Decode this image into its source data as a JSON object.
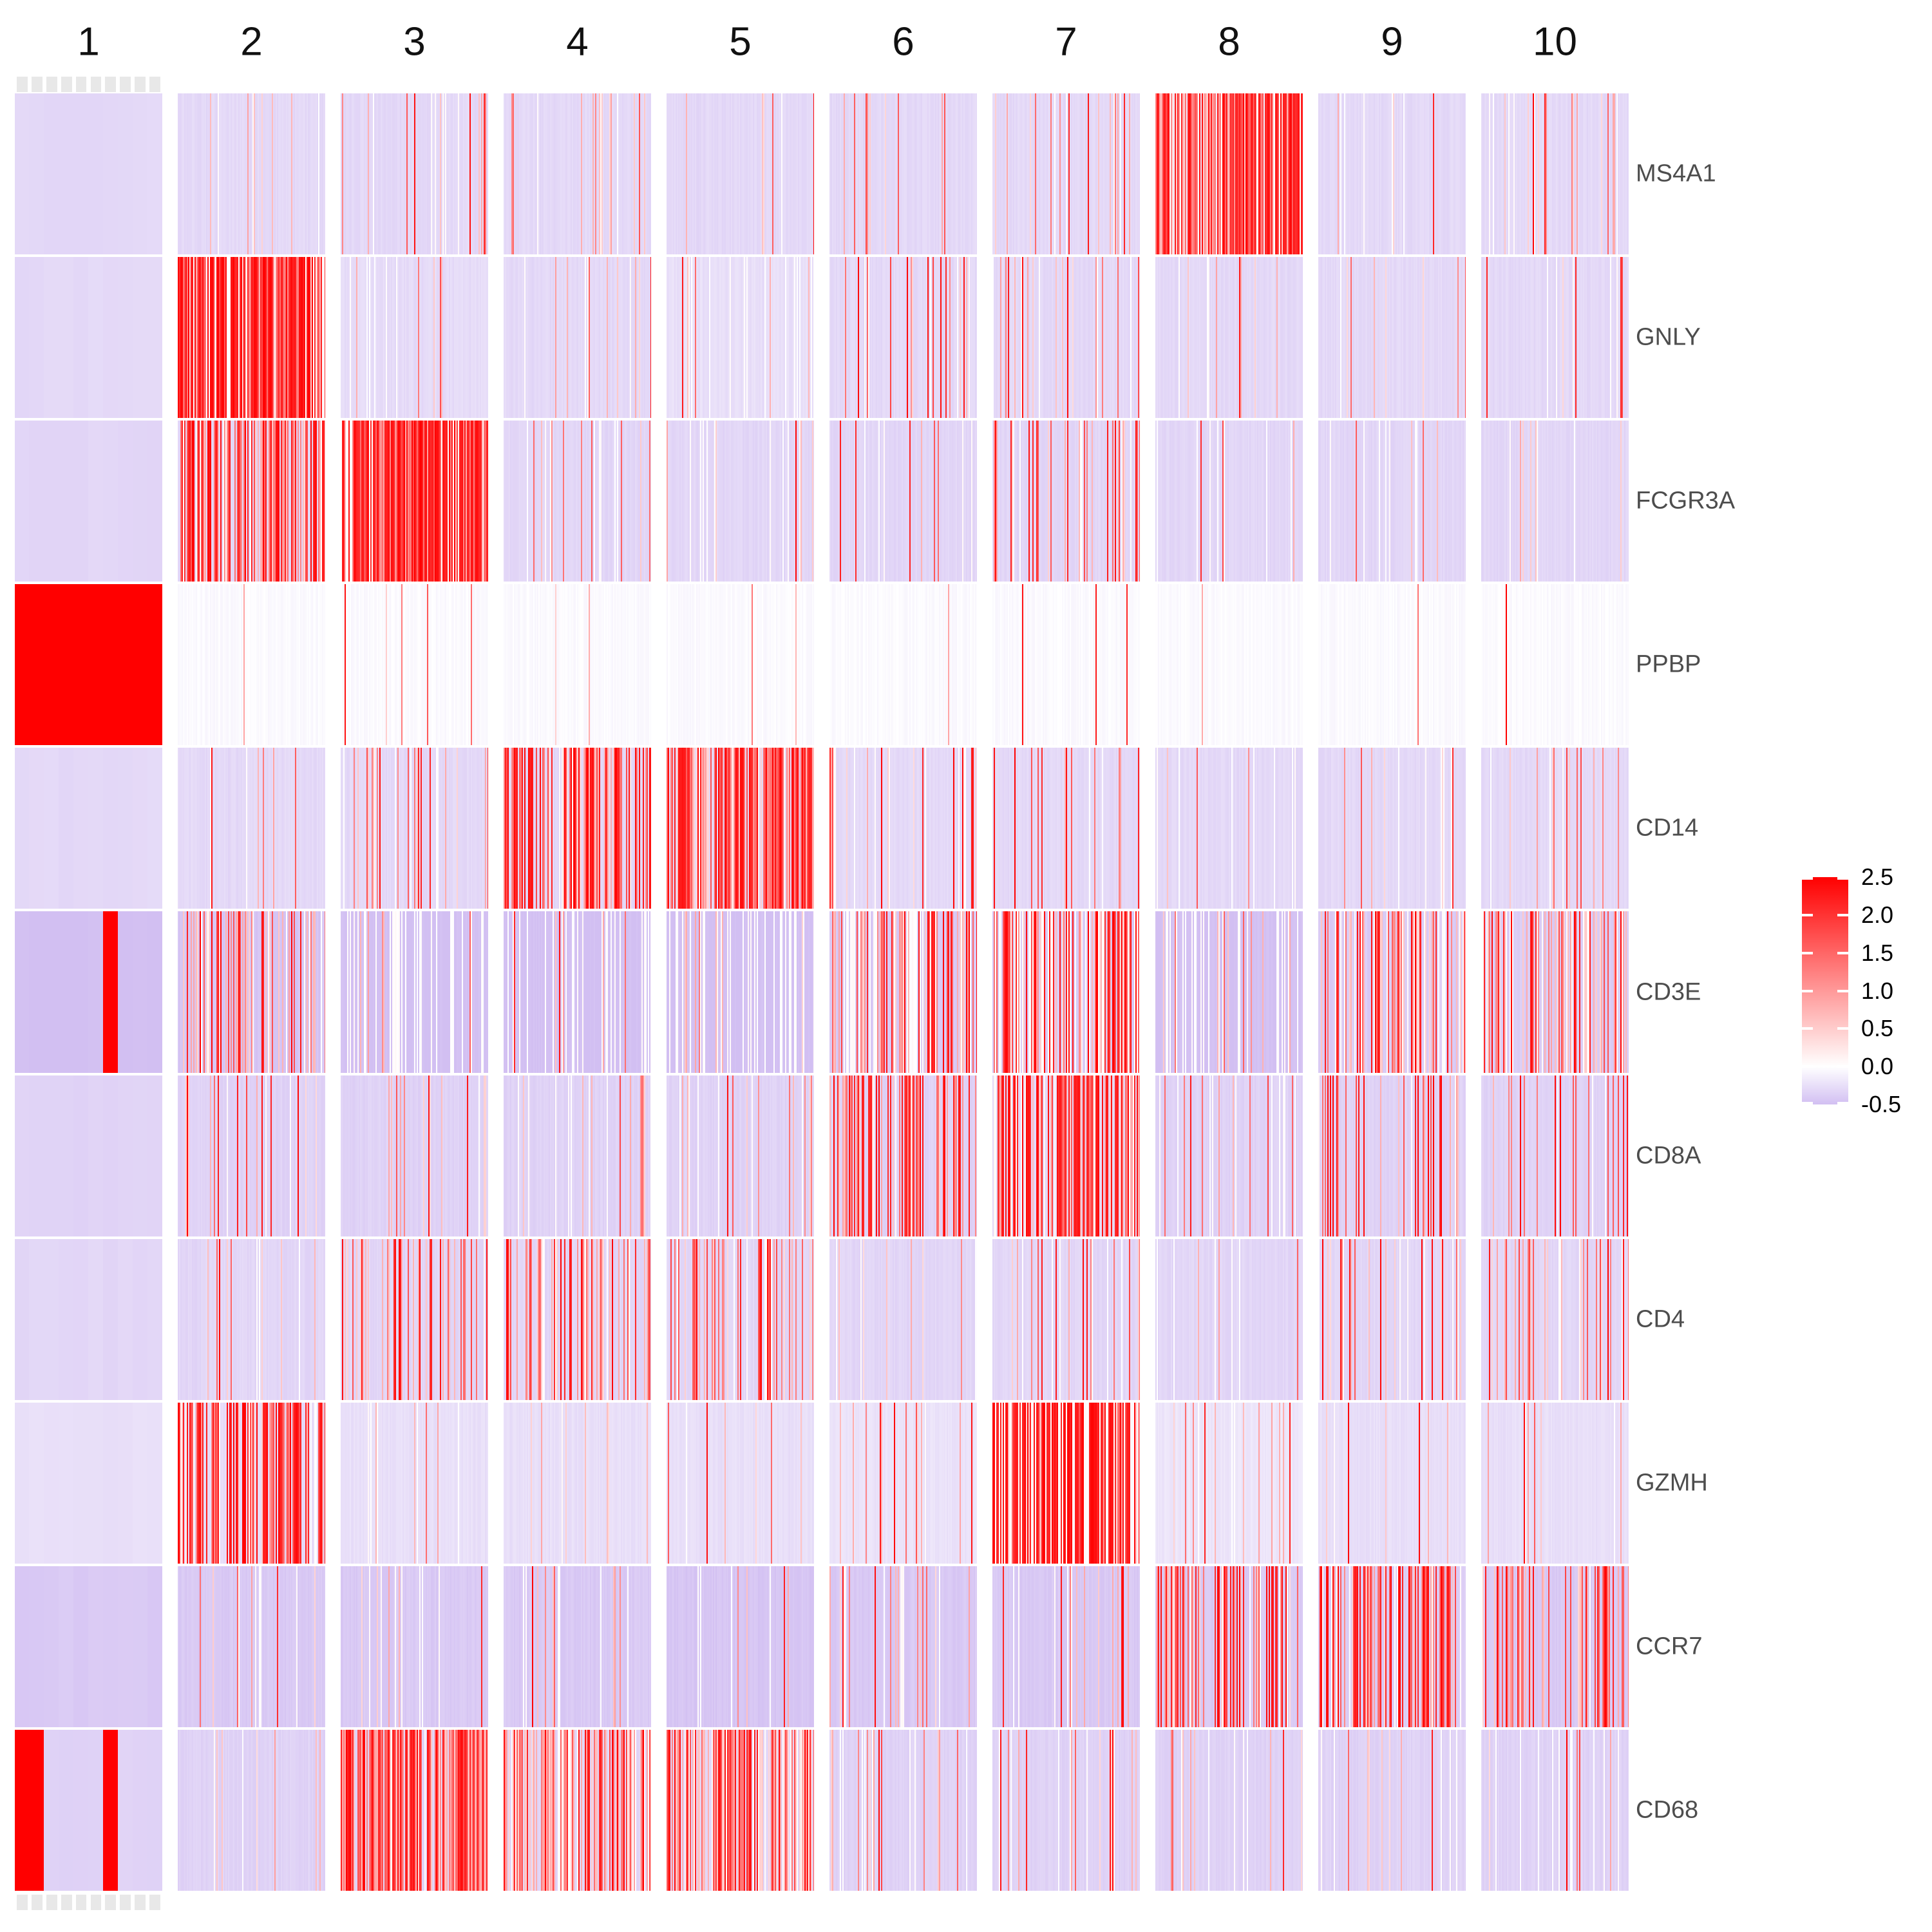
{
  "figure": {
    "background": "#ffffff",
    "description": "Single-cell gene expression heatmap: 11 marker genes by 10 clusters, cells as thin vertical strips colored by scaled expression"
  },
  "header": {
    "cluster_labels": [
      "1",
      "2",
      "3",
      "4",
      "5",
      "6",
      "7",
      "8",
      "9",
      "10"
    ]
  },
  "gene_axis": {
    "labels": [
      "MS4A1",
      "GNLY",
      "FCGR3A",
      "PPBP",
      "CD14",
      "CD3E",
      "CD8A",
      "CD4",
      "GZMH",
      "CCR7",
      "CD68"
    ]
  },
  "chart_data": {
    "type": "heatmap",
    "title": "",
    "xlabel": "",
    "ylabel": "",
    "categories_x": [
      "1",
      "2",
      "3",
      "4",
      "5",
      "6",
      "7",
      "8",
      "9",
      "10"
    ],
    "categories_y": [
      "MS4A1",
      "GNLY",
      "FCGR3A",
      "PPBP",
      "CD14",
      "CD3E",
      "CD8A",
      "CD4",
      "GZMH",
      "CCR7",
      "CD68"
    ],
    "value_range": [
      -0.5,
      2.5
    ],
    "legend": {
      "position": "right",
      "ticks": [
        "2.5",
        "2.0",
        "1.5",
        "1.0",
        "0.5",
        "0.0",
        "-0.5"
      ],
      "tick_values": [
        2.5,
        2.0,
        1.5,
        1.0,
        0.5,
        0.0,
        -0.5
      ]
    },
    "colorscale": {
      "negative_end_color": "#d2bff2",
      "zero_color": "#ffffff",
      "positive_end_color": "#ff0000",
      "min": -0.5,
      "max": 2.5
    },
    "cluster1": {
      "n_cells": 10,
      "high_value": 2.5,
      "high_cells": {
        "MS4A1": [],
        "GNLY": [],
        "FCGR3A": [],
        "PPBP": "all",
        "CD14": [],
        "CD3E": [
          6
        ],
        "CD8A": [],
        "CD4": [],
        "GZMH": [],
        "CCR7": [],
        "CD68": [
          0,
          1,
          6
        ]
      },
      "cell_tick_bar_color": "#e8e8e8"
    },
    "block_params_legend": [
      "background_value",
      "frac_white",
      "frac_low_0.3_0.9",
      "frac_mid_1.0_1.8",
      "frac_high_2.0_2.5"
    ],
    "blocks": {
      "MS4A1": [
        [
          -0.3,
          0,
          0,
          0,
          0
        ],
        [
          -0.3,
          0.02,
          0.03,
          0.01,
          0.005
        ],
        [
          -0.3,
          0.03,
          0.06,
          0.03,
          0.015
        ],
        [
          -0.3,
          0.02,
          0.04,
          0.02,
          0.01
        ],
        [
          -0.3,
          0.02,
          0.02,
          0.01,
          0.005
        ],
        [
          -0.3,
          0.02,
          0.04,
          0.03,
          0.02
        ],
        [
          -0.3,
          0.02,
          0.04,
          0.03,
          0.03
        ],
        [
          -0.15,
          0.08,
          0.08,
          0.22,
          0.58
        ],
        [
          -0.3,
          0.03,
          0.03,
          0.01,
          0.01
        ],
        [
          -0.3,
          0.03,
          0.04,
          0.02,
          0.01
        ]
      ],
      "GNLY": [
        [
          -0.3,
          0,
          0,
          0,
          0
        ],
        [
          0,
          0.1,
          0.06,
          0.18,
          0.62
        ],
        [
          -0.28,
          0.04,
          0.02,
          0.01,
          0.003
        ],
        [
          -0.3,
          0.03,
          0.02,
          0.01,
          0.005
        ],
        [
          -0.25,
          0.08,
          0.02,
          0.01,
          0.003
        ],
        [
          -0.3,
          0.03,
          0.03,
          0.03,
          0.04
        ],
        [
          -0.3,
          0.04,
          0.04,
          0.04,
          0.05
        ],
        [
          -0.3,
          0.04,
          0.02,
          0.01,
          0.005
        ],
        [
          -0.3,
          0.04,
          0.02,
          0.01,
          0.012
        ],
        [
          -0.3,
          0.04,
          0.02,
          0.01,
          0.012
        ]
      ],
      "FCGR3A": [
        [
          -0.32,
          0,
          0,
          0,
          0
        ],
        [
          -0.32,
          0.06,
          0.14,
          0.24,
          0.3
        ],
        [
          0,
          0.1,
          0.08,
          0.24,
          0.55
        ],
        [
          -0.32,
          0.05,
          0.03,
          0.01,
          0.008
        ],
        [
          -0.32,
          0.06,
          0.02,
          0.01,
          0.008
        ],
        [
          -0.32,
          0.04,
          0.03,
          0.02,
          0.02
        ],
        [
          -0.32,
          0.05,
          0.08,
          0.07,
          0.07
        ],
        [
          -0.32,
          0.07,
          0.02,
          0.01,
          0.003
        ],
        [
          -0.32,
          0.05,
          0.02,
          0.01,
          0.005
        ],
        [
          -0.32,
          0.06,
          0.03,
          0.02,
          0.01
        ]
      ],
      "PPBP": [
        [
          -0.04,
          0,
          0,
          0,
          0
        ],
        [
          -0.04,
          0,
          0.005,
          0.002,
          0.001
        ],
        [
          -0.04,
          0,
          0.01,
          0.01,
          0.003
        ],
        [
          -0.04,
          0,
          0.01,
          0.005,
          0.008
        ],
        [
          -0.04,
          0,
          0.005,
          0.002,
          0.001
        ],
        [
          -0.04,
          0,
          0.005,
          0.002,
          0.001
        ],
        [
          -0.04,
          0,
          0.005,
          0.002,
          0.01
        ],
        [
          -0.04,
          0,
          0.005,
          0.002,
          0.001
        ],
        [
          -0.04,
          0,
          0.005,
          0.002,
          0.01
        ],
        [
          -0.04,
          0,
          0.005,
          0.002,
          0.001
        ]
      ],
      "CD14": [
        [
          -0.3,
          0,
          0,
          0,
          0
        ],
        [
          -0.3,
          0.03,
          0.03,
          0.01,
          0.008
        ],
        [
          -0.3,
          0.04,
          0.06,
          0.04,
          0.025
        ],
        [
          -0.32,
          0.04,
          0.12,
          0.22,
          0.3
        ],
        [
          -0.3,
          0.03,
          0.12,
          0.26,
          0.42
        ],
        [
          -0.3,
          0.04,
          0.04,
          0.02,
          0.02
        ],
        [
          -0.3,
          0.03,
          0.03,
          0.02,
          0.03
        ],
        [
          -0.3,
          0.06,
          0.01,
          0.005,
          0.005
        ],
        [
          -0.3,
          0.04,
          0.03,
          0.01,
          0.02
        ],
        [
          -0.3,
          0.04,
          0.03,
          0.015,
          0.01
        ]
      ],
      "CD3E": [
        [
          -0.5,
          0,
          0,
          0,
          0
        ],
        [
          -0.45,
          0.1,
          0.16,
          0.1,
          0.09
        ],
        [
          -0.5,
          0.2,
          0.04,
          0.015,
          0.005
        ],
        [
          -0.5,
          0.2,
          0.05,
          0.02,
          0.01
        ],
        [
          -0.5,
          0.26,
          0.02,
          0.005,
          0.005
        ],
        [
          -0.42,
          0.2,
          0.15,
          0.16,
          0.16
        ],
        [
          -0.42,
          0.24,
          0.13,
          0.16,
          0.2
        ],
        [
          -0.5,
          0.22,
          0.03,
          0.01,
          0.005
        ],
        [
          -0.4,
          0.12,
          0.14,
          0.13,
          0.11
        ],
        [
          -0.4,
          0.12,
          0.14,
          0.13,
          0.11
        ]
      ],
      "CD8A": [
        [
          -0.35,
          0,
          0,
          0,
          0
        ],
        [
          -0.35,
          0.04,
          0.03,
          0.04,
          0.06
        ],
        [
          -0.35,
          0.04,
          0.03,
          0.012,
          0.01
        ],
        [
          -0.35,
          0.04,
          0.03,
          0.02,
          0.01
        ],
        [
          -0.35,
          0.04,
          0.03,
          0.02,
          0.02
        ],
        [
          -0.35,
          0.05,
          0.09,
          0.15,
          0.24
        ],
        [
          -0.3,
          0.06,
          0.09,
          0.17,
          0.4
        ],
        [
          -0.35,
          0.04,
          0.02,
          0.02,
          0.03
        ],
        [
          -0.35,
          0.05,
          0.07,
          0.07,
          0.08
        ],
        [
          -0.35,
          0.05,
          0.07,
          0.06,
          0.06
        ]
      ],
      "CD4": [
        [
          -0.32,
          0,
          0,
          0,
          0
        ],
        [
          -0.32,
          0.03,
          0.03,
          0.02,
          0.01
        ],
        [
          -0.32,
          0.05,
          0.11,
          0.13,
          0.08
        ],
        [
          -0.32,
          0.05,
          0.11,
          0.15,
          0.1
        ],
        [
          -0.32,
          0.05,
          0.1,
          0.12,
          0.08
        ],
        [
          -0.32,
          0.04,
          0.03,
          0.02,
          0.01
        ],
        [
          -0.32,
          0.04,
          0.03,
          0.02,
          0.02
        ],
        [
          -0.32,
          0.04,
          0.02,
          0.01,
          0.005
        ],
        [
          -0.32,
          0.04,
          0.06,
          0.05,
          0.04
        ],
        [
          -0.32,
          0.05,
          0.08,
          0.08,
          0.06
        ]
      ],
      "GZMH": [
        [
          -0.25,
          0,
          0,
          0,
          0
        ],
        [
          -0.28,
          0.06,
          0.07,
          0.14,
          0.4
        ],
        [
          -0.25,
          0.03,
          0.03,
          0.01,
          0.008
        ],
        [
          -0.25,
          0.03,
          0.03,
          0.01,
          0.005
        ],
        [
          -0.25,
          0.03,
          0.03,
          0.01,
          0.012
        ],
        [
          -0.22,
          0.03,
          0.04,
          0.02,
          0.045
        ],
        [
          -0.05,
          0.24,
          0.06,
          0.12,
          0.55
        ],
        [
          -0.2,
          0.04,
          0.03,
          0.01,
          0.008
        ],
        [
          -0.25,
          0.03,
          0.02,
          0.01,
          0.015
        ],
        [
          -0.25,
          0.03,
          0.02,
          0.01,
          0.005
        ]
      ],
      "CCR7": [
        [
          -0.42,
          0,
          0,
          0,
          0
        ],
        [
          -0.42,
          0.04,
          0.04,
          0.03,
          0.02
        ],
        [
          -0.42,
          0.05,
          0.03,
          0.01,
          0.01
        ],
        [
          -0.42,
          0.06,
          0.03,
          0.01,
          0.005
        ],
        [
          -0.45,
          0.03,
          0.02,
          0.005,
          0.005
        ],
        [
          -0.42,
          0.04,
          0.04,
          0.035,
          0.05
        ],
        [
          -0.42,
          0.04,
          0.03,
          0.02,
          0.012
        ],
        [
          -0.42,
          0.05,
          0.09,
          0.12,
          0.13
        ],
        [
          -0.4,
          0.05,
          0.1,
          0.16,
          0.25
        ],
        [
          -0.42,
          0.05,
          0.09,
          0.12,
          0.1
        ]
      ],
      "CD68": [
        [
          -0.35,
          0,
          0,
          0,
          0
        ],
        [
          -0.35,
          0.04,
          0.03,
          0.01,
          0.005
        ],
        [
          -0.32,
          0.05,
          0.18,
          0.3,
          0.34
        ],
        [
          -0.32,
          0.09,
          0.28,
          0.26,
          0.16
        ],
        [
          -0.32,
          0.07,
          0.22,
          0.28,
          0.22
        ],
        [
          -0.35,
          0.04,
          0.03,
          0.02,
          0.01
        ],
        [
          -0.35,
          0.04,
          0.03,
          0.02,
          0.02
        ],
        [
          -0.35,
          0.07,
          0.02,
          0.01,
          0.005
        ],
        [
          -0.35,
          0.05,
          0.03,
          0.01,
          0.005
        ],
        [
          -0.35,
          0.08,
          0.03,
          0.01,
          0.012
        ]
      ]
    }
  }
}
